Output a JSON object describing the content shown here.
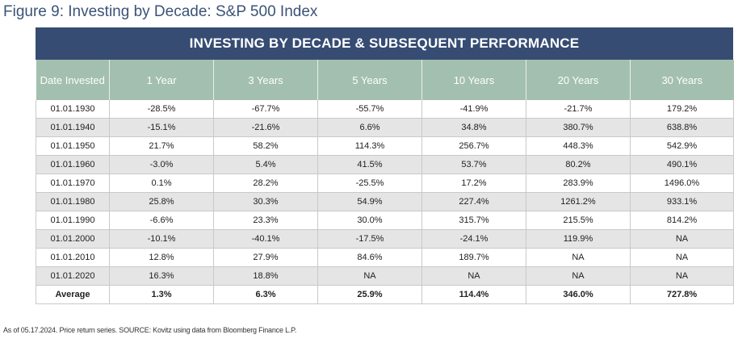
{
  "figure_title": "Figure 9: Investing by Decade: S&P 500 Index",
  "table_title": "INVESTING BY DECADE & SUBSEQUENT PERFORMANCE",
  "columns": [
    "Date Invested",
    "1 Year",
    "3 Years",
    "5 Years",
    "10 Years",
    "20 Years",
    "30 Years"
  ],
  "rows": [
    [
      "01.01.1930",
      "-28.5%",
      "-67.7%",
      "-55.7%",
      "-41.9%",
      "-21.7%",
      "179.2%"
    ],
    [
      "01.01.1940",
      "-15.1%",
      "-21.6%",
      "6.6%",
      "34.8%",
      "380.7%",
      "638.8%"
    ],
    [
      "01.01.1950",
      "21.7%",
      "58.2%",
      "114.3%",
      "256.7%",
      "448.3%",
      "542.9%"
    ],
    [
      "01.01.1960",
      "-3.0%",
      "5.4%",
      "41.5%",
      "53.7%",
      "80.2%",
      "490.1%"
    ],
    [
      "01.01.1970",
      "0.1%",
      "28.2%",
      "-25.5%",
      "17.2%",
      "283.9%",
      "1496.0%"
    ],
    [
      "01.01.1980",
      "25.8%",
      "30.3%",
      "54.9%",
      "227.4%",
      "1261.2%",
      "933.1%"
    ],
    [
      "01.01.1990",
      "-6.6%",
      "23.3%",
      "30.0%",
      "315.7%",
      "215.5%",
      "814.2%"
    ],
    [
      "01.01.2000",
      "-10.1%",
      "-40.1%",
      "-17.5%",
      "-24.1%",
      "119.9%",
      "NA"
    ],
    [
      "01.01.2010",
      "12.8%",
      "27.9%",
      "84.6%",
      "189.7%",
      "NA",
      "NA"
    ],
    [
      "01.01.2020",
      "16.3%",
      "18.8%",
      "NA",
      "NA",
      "NA",
      "NA"
    ]
  ],
  "average": [
    "Average",
    "1.3%",
    "6.3%",
    "25.9%",
    "114.4%",
    "346.0%",
    "727.8%"
  ],
  "footnote": "As of 05.17.2024. Price return series. SOURCE: Kovitz using data from Bloomberg Finance L.P."
}
